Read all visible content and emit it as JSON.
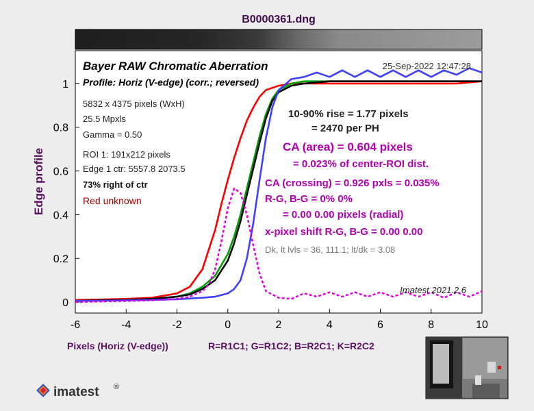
{
  "window": {
    "file_title": "B0000361.dng",
    "colors": {
      "title": "#3d0a4a",
      "axis_label": "#5a1060",
      "annotation": "#b000b0",
      "red_note": "#a00000",
      "background": "#ededed"
    }
  },
  "chart_data": {
    "type": "line",
    "title": "Bayer RAW Chromatic Aberration",
    "subtitle": "Profile: Horiz (V-edge) (corr.; reversed)",
    "timestamp": "25-Sep-2022 12:47:28",
    "xlabel": "Pixels (Horiz (V-edge))",
    "channel_legend": "R=R1C1; G=R1C2; B=R2C1; K=R2C2",
    "ylabel": "Edge profile",
    "xlim": [
      -6,
      10
    ],
    "ylim": [
      -0.05,
      1.15
    ],
    "x_ticks": [
      -6,
      -4,
      -2,
      0,
      2,
      4,
      6,
      8,
      10
    ],
    "y_ticks": [
      0,
      0.2,
      0.4,
      0.6,
      0.8,
      1
    ],
    "x_tick_labels": [
      "-6",
      "-4",
      "-2",
      "0",
      "2",
      "4",
      "6",
      "8",
      "10"
    ],
    "y_tick_labels": [
      "0",
      "0.2",
      "0.4",
      "0.6",
      "0.8",
      "1"
    ],
    "grid": false,
    "series": [
      {
        "color": "#ff0000",
        "style": "solid",
        "x": [
          -6,
          -5,
          -4,
          -3,
          -2,
          -1.5,
          -1,
          -0.5,
          -0.25,
          0,
          0.25,
          0.5,
          0.75,
          1,
          1.25,
          1.5,
          2,
          2.5,
          3,
          4,
          5,
          6,
          7,
          8,
          9,
          10
        ],
        "y": [
          0.01,
          0.012,
          0.015,
          0.02,
          0.04,
          0.07,
          0.15,
          0.33,
          0.45,
          0.56,
          0.66,
          0.75,
          0.83,
          0.89,
          0.94,
          0.97,
          0.99,
          1.0,
          1.0,
          1.0,
          1.0,
          1.0,
          1.0,
          1.0,
          1.0,
          1.01
        ]
      },
      {
        "color": "#00a000",
        "style": "solid",
        "x": [
          -6,
          -5,
          -4,
          -3,
          -2,
          -1.5,
          -1,
          -0.5,
          0,
          0.25,
          0.5,
          0.75,
          1,
          1.25,
          1.5,
          1.75,
          2,
          2.5,
          3,
          4,
          5,
          6,
          7,
          8,
          9,
          10
        ],
        "y": [
          0.005,
          0.008,
          0.01,
          0.015,
          0.025,
          0.04,
          0.07,
          0.12,
          0.22,
          0.3,
          0.4,
          0.52,
          0.64,
          0.76,
          0.86,
          0.93,
          0.97,
          1.0,
          1.01,
          1.01,
          1.01,
          1.01,
          1.01,
          1.01,
          1.01,
          1.01
        ]
      },
      {
        "color": "#000000",
        "style": "solid",
        "x": [
          -6,
          -5,
          -4,
          -3,
          -2,
          -1.5,
          -1,
          -0.5,
          0,
          0.25,
          0.5,
          0.75,
          1,
          1.25,
          1.5,
          1.75,
          2,
          2.5,
          3,
          4,
          5,
          6,
          7,
          8,
          9,
          10
        ],
        "y": [
          0.005,
          0.008,
          0.01,
          0.015,
          0.025,
          0.035,
          0.06,
          0.1,
          0.19,
          0.27,
          0.37,
          0.49,
          0.61,
          0.73,
          0.84,
          0.92,
          0.96,
          0.99,
          1.0,
          1.01,
          1.01,
          1.01,
          1.01,
          1.01,
          1.01,
          1.01
        ]
      },
      {
        "color": "#4040ff",
        "style": "solid",
        "x": [
          -6,
          -5,
          -4,
          -3,
          -2,
          -1,
          -0.5,
          0,
          0.25,
          0.5,
          0.75,
          1,
          1.25,
          1.5,
          1.75,
          2,
          2.5,
          3,
          3.5,
          4,
          4.5,
          5,
          5.5,
          6,
          6.5,
          7,
          7.5,
          8,
          8.5,
          9,
          9.5,
          10
        ],
        "y": [
          0.005,
          0.006,
          0.008,
          0.01,
          0.013,
          0.02,
          0.025,
          0.04,
          0.06,
          0.1,
          0.2,
          0.36,
          0.56,
          0.75,
          0.89,
          0.97,
          1.02,
          1.03,
          1.05,
          1.03,
          1.06,
          1.03,
          1.06,
          1.03,
          1.06,
          1.03,
          1.06,
          1.03,
          1.06,
          1.04,
          1.07,
          1.05
        ]
      },
      {
        "color": "#e000e0",
        "style": "dashed",
        "x": [
          -6,
          -5,
          -4,
          -3,
          -2,
          -1.5,
          -1,
          -0.75,
          -0.5,
          -0.25,
          0,
          0.25,
          0.5,
          0.75,
          1,
          1.25,
          1.5,
          2,
          2.5,
          3,
          3.5,
          4,
          4.5,
          5,
          5.5,
          6,
          6.5,
          7,
          7.5,
          8,
          8.5,
          9,
          9.5,
          10
        ],
        "y": [
          0,
          0.003,
          0.005,
          0.008,
          0.015,
          0.025,
          0.05,
          0.08,
          0.15,
          0.28,
          0.43,
          0.52,
          0.5,
          0.4,
          0.26,
          0.13,
          0.05,
          0.02,
          0.015,
          0.04,
          0.025,
          0.045,
          0.025,
          0.045,
          0.025,
          0.045,
          0.025,
          0.045,
          0.025,
          0.045,
          0.02,
          0.045,
          0.025,
          0.05
        ]
      }
    ],
    "info_lines": [
      "5832 x 4375 pixels (WxH)",
      "25.5 Mpxls",
      "Gamma = 0.50",
      "ROI 1: 191x212 pixels",
      "Edge 1 ctr: 5557.8  2073.5"
    ],
    "position_note": "73% right of ctr",
    "color_note": "Red unknown",
    "rise_lines": [
      "10-90% rise = 1.77 pixels",
      "= 2470 per PH"
    ],
    "ca_area_lines": [
      "CA (area) = 0.604 pixels",
      "= 0.023% of center-ROI dist."
    ],
    "ca_crossing_lines": [
      "CA (crossing) = 0.926 pxls = 0.035%",
      "R-G, B-G = 0%  0%",
      "= 0.00  0.00 pixels (radial)",
      "x-pixel shift R-G, B-G = 0.00  0.00"
    ],
    "levels_line": "Dk, lt lvls = 36, 111.1;  lt/dk = 3.08",
    "version": "Imatest 2021.2.6"
  },
  "logo": {
    "text": "imatest",
    "mark": "®"
  }
}
